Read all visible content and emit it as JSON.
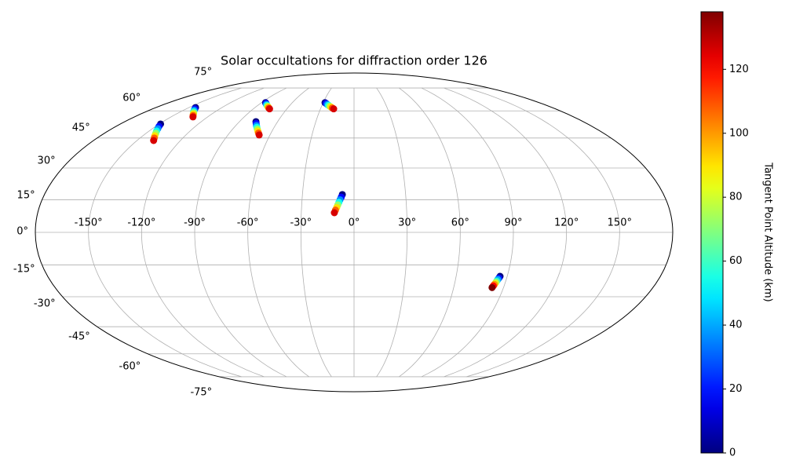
{
  "chart_data": {
    "type": "scatter",
    "projection": "mollweide",
    "title": "Solar occultations for diffraction order 126",
    "lon": [
      -149,
      -147.5,
      -146,
      -144.5,
      -143,
      -141.5,
      -140,
      -138.5,
      -144,
      -142.3,
      -140.6,
      -138.9,
      -137.1,
      -135.4,
      -133.7,
      -132,
      -86,
      -84.5,
      -83,
      -81.5,
      -80,
      -78.5,
      -77,
      -75.5,
      -77,
      -75.7,
      -74.3,
      -73,
      -71.7,
      -70.4,
      -69,
      -67.7,
      -28.2,
      -26.8,
      -25.3,
      -23.9,
      -22.5,
      -21.1,
      -19.6,
      -18.2,
      -6.8,
      -7.4,
      -8.1,
      -8.7,
      -9.3,
      -9.9,
      -10.6,
      -11.2,
      85.8,
      85.4,
      85,
      84.6,
      84.3,
      83.9,
      83.5,
      83.1
    ],
    "lat": [
      52.5,
      51.2,
      50,
      48.7,
      47.5,
      46.2,
      45,
      43.7,
      62,
      61.2,
      60.4,
      59.6,
      58.9,
      58.1,
      57.3,
      56.5,
      65,
      64.5,
      63.9,
      63.4,
      62.8,
      62.3,
      61.7,
      61.2,
      53.8,
      52.8,
      51.7,
      50.7,
      49.7,
      48.7,
      47.6,
      46.6,
      65,
      64.5,
      63.9,
      63.4,
      62.8,
      62.3,
      61.7,
      61.2,
      17.4,
      16.2,
      15,
      13.8,
      12.6,
      11.4,
      10.2,
      9,
      -20.3,
      -21.1,
      -21.8,
      -22.6,
      -23.3,
      -24.1,
      -24.8,
      -25.6
    ],
    "altitude": [
      0,
      18,
      36,
      54,
      72,
      90,
      108,
      126,
      0,
      18,
      36,
      54,
      72,
      90,
      108,
      126,
      0,
      18,
      36,
      54,
      72,
      90,
      108,
      126,
      0,
      18,
      36,
      54,
      72,
      90,
      108,
      126,
      0,
      18,
      36,
      54,
      72,
      90,
      108,
      126,
      0,
      18,
      36,
      54,
      72,
      90,
      108,
      126,
      0,
      20,
      40,
      60,
      80,
      100,
      120,
      138
    ],
    "xticks": [
      {
        "value": -150,
        "label": "-150°"
      },
      {
        "value": -120,
        "label": "-120°"
      },
      {
        "value": -90,
        "label": "-90°"
      },
      {
        "value": -60,
        "label": "-60°"
      },
      {
        "value": -30,
        "label": "-30°"
      },
      {
        "value": 0,
        "label": "0°"
      },
      {
        "value": 30,
        "label": "30°"
      },
      {
        "value": 60,
        "label": "60°"
      },
      {
        "value": 90,
        "label": "90°"
      },
      {
        "value": 120,
        "label": "120°"
      },
      {
        "value": 150,
        "label": "150°"
      }
    ],
    "yticks": [
      {
        "value": -75,
        "label": "-75°"
      },
      {
        "value": -60,
        "label": "-60°"
      },
      {
        "value": -45,
        "label": "-45°"
      },
      {
        "value": -30,
        "label": "-30°"
      },
      {
        "value": -15,
        "label": "-15°"
      },
      {
        "value": 0,
        "label": "0°"
      },
      {
        "value": 15,
        "label": "15°"
      },
      {
        "value": 30,
        "label": "30°"
      },
      {
        "value": 45,
        "label": "45°"
      },
      {
        "value": 60,
        "label": "60°"
      },
      {
        "value": 75,
        "label": "75°"
      }
    ],
    "grid": true,
    "cmap": "jet",
    "clim": [
      0,
      138
    ],
    "cticks": [
      0,
      20,
      40,
      60,
      80,
      100,
      120
    ],
    "colorbar_label": "Tangent Point Altitude (km)"
  }
}
